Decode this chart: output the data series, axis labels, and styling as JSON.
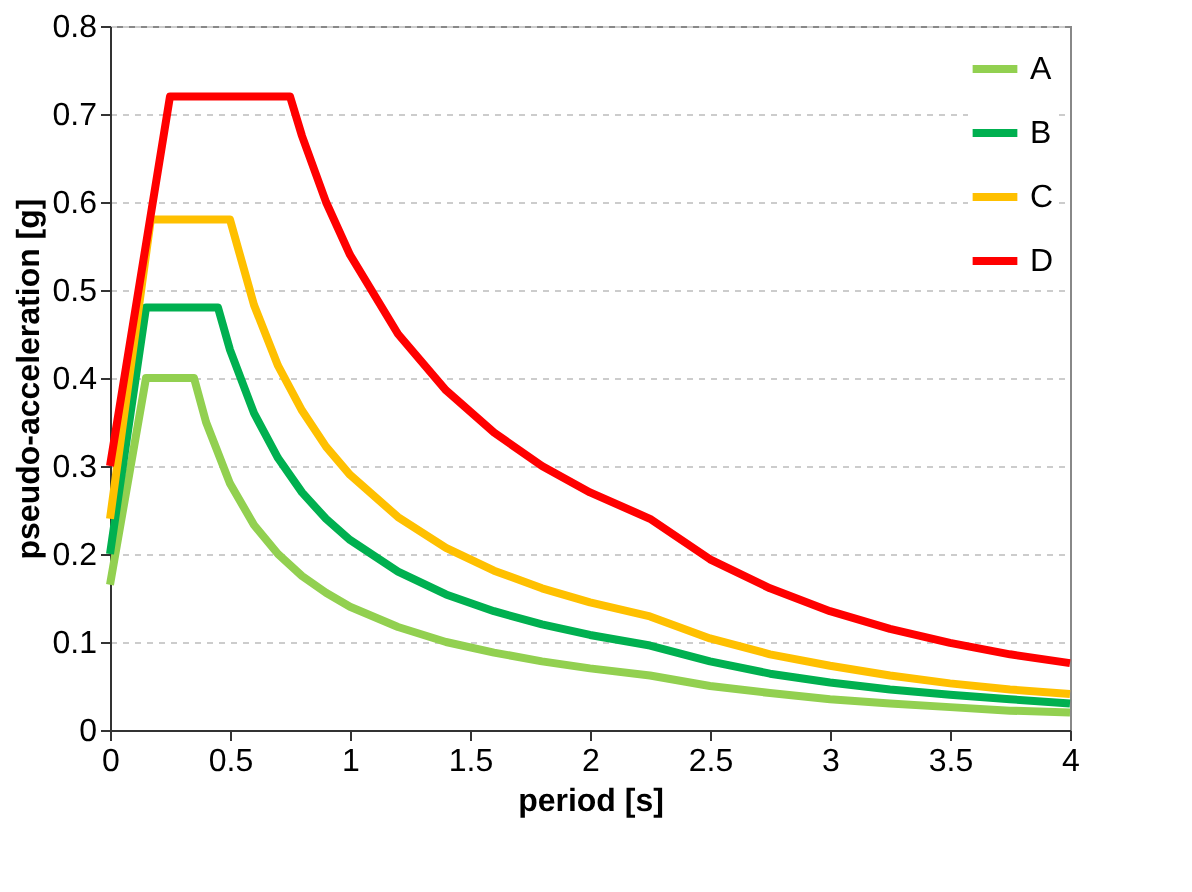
{
  "chart_data": {
    "type": "line",
    "xlabel": "period [s]",
    "ylabel": "pseudo-acceleration [g]",
    "xlim": [
      0,
      4
    ],
    "xticks": [
      0,
      0.5,
      1,
      1.5,
      2,
      2.5,
      3,
      3.5,
      4
    ],
    "ylim": [
      0,
      0.8
    ],
    "yticks": [
      0,
      0.1,
      0.2,
      0.3,
      0.4,
      0.5,
      0.6,
      0.7,
      0.8
    ],
    "grid": "y",
    "legend": "top right",
    "marker": "none",
    "line_style": "solid",
    "series": [
      {
        "name": "A",
        "color": "#92d050",
        "x": [
          0,
          0.15,
          0.35,
          0.4,
          0.5,
          0.6,
          0.7,
          0.8,
          0.9,
          1,
          1.2,
          1.4,
          1.6,
          1.8,
          2,
          2.25,
          2.5,
          2.75,
          3,
          3.25,
          3.5,
          3.75,
          4
        ],
        "values": [
          0.165,
          0.4,
          0.4,
          0.35,
          0.28,
          0.233,
          0.2,
          0.175,
          0.156,
          0.14,
          0.117,
          0.1,
          0.088,
          0.078,
          0.07,
          0.062,
          0.05,
          0.042,
          0.035,
          0.03,
          0.026,
          0.022,
          0.02
        ]
      },
      {
        "name": "B",
        "color": "#00b050",
        "x": [
          0,
          0.15,
          0.45,
          0.5,
          0.6,
          0.7,
          0.8,
          0.9,
          1,
          1.2,
          1.4,
          1.6,
          1.8,
          2,
          2.25,
          2.5,
          2.75,
          3,
          3.25,
          3.5,
          3.75,
          4
        ],
        "values": [
          0.2,
          0.48,
          0.48,
          0.432,
          0.36,
          0.309,
          0.27,
          0.24,
          0.216,
          0.18,
          0.154,
          0.135,
          0.12,
          0.108,
          0.096,
          0.078,
          0.064,
          0.054,
          0.046,
          0.04,
          0.035,
          0.03
        ]
      },
      {
        "name": "C",
        "color": "#ffc000",
        "x": [
          0,
          0.17,
          0.5,
          0.6,
          0.7,
          0.8,
          0.9,
          1,
          1.2,
          1.4,
          1.6,
          1.8,
          2,
          2.25,
          2.5,
          2.75,
          3,
          3.25,
          3.5,
          3.75,
          4
        ],
        "values": [
          0.24,
          0.58,
          0.58,
          0.483,
          0.414,
          0.363,
          0.322,
          0.29,
          0.242,
          0.207,
          0.181,
          0.161,
          0.145,
          0.129,
          0.104,
          0.086,
          0.073,
          0.062,
          0.053,
          0.046,
          0.041
        ]
      },
      {
        "name": "D",
        "color": "#ff0000",
        "x": [
          0,
          0.25,
          0.75,
          0.8,
          0.9,
          1,
          1.2,
          1.4,
          1.6,
          1.8,
          2,
          2.25,
          2.5,
          2.75,
          3,
          3.25,
          3.5,
          3.75,
          4
        ],
        "values": [
          0.3,
          0.72,
          0.72,
          0.675,
          0.6,
          0.54,
          0.45,
          0.386,
          0.338,
          0.3,
          0.27,
          0.24,
          0.194,
          0.161,
          0.135,
          0.115,
          0.099,
          0.086,
          0.076
        ]
      }
    ]
  }
}
